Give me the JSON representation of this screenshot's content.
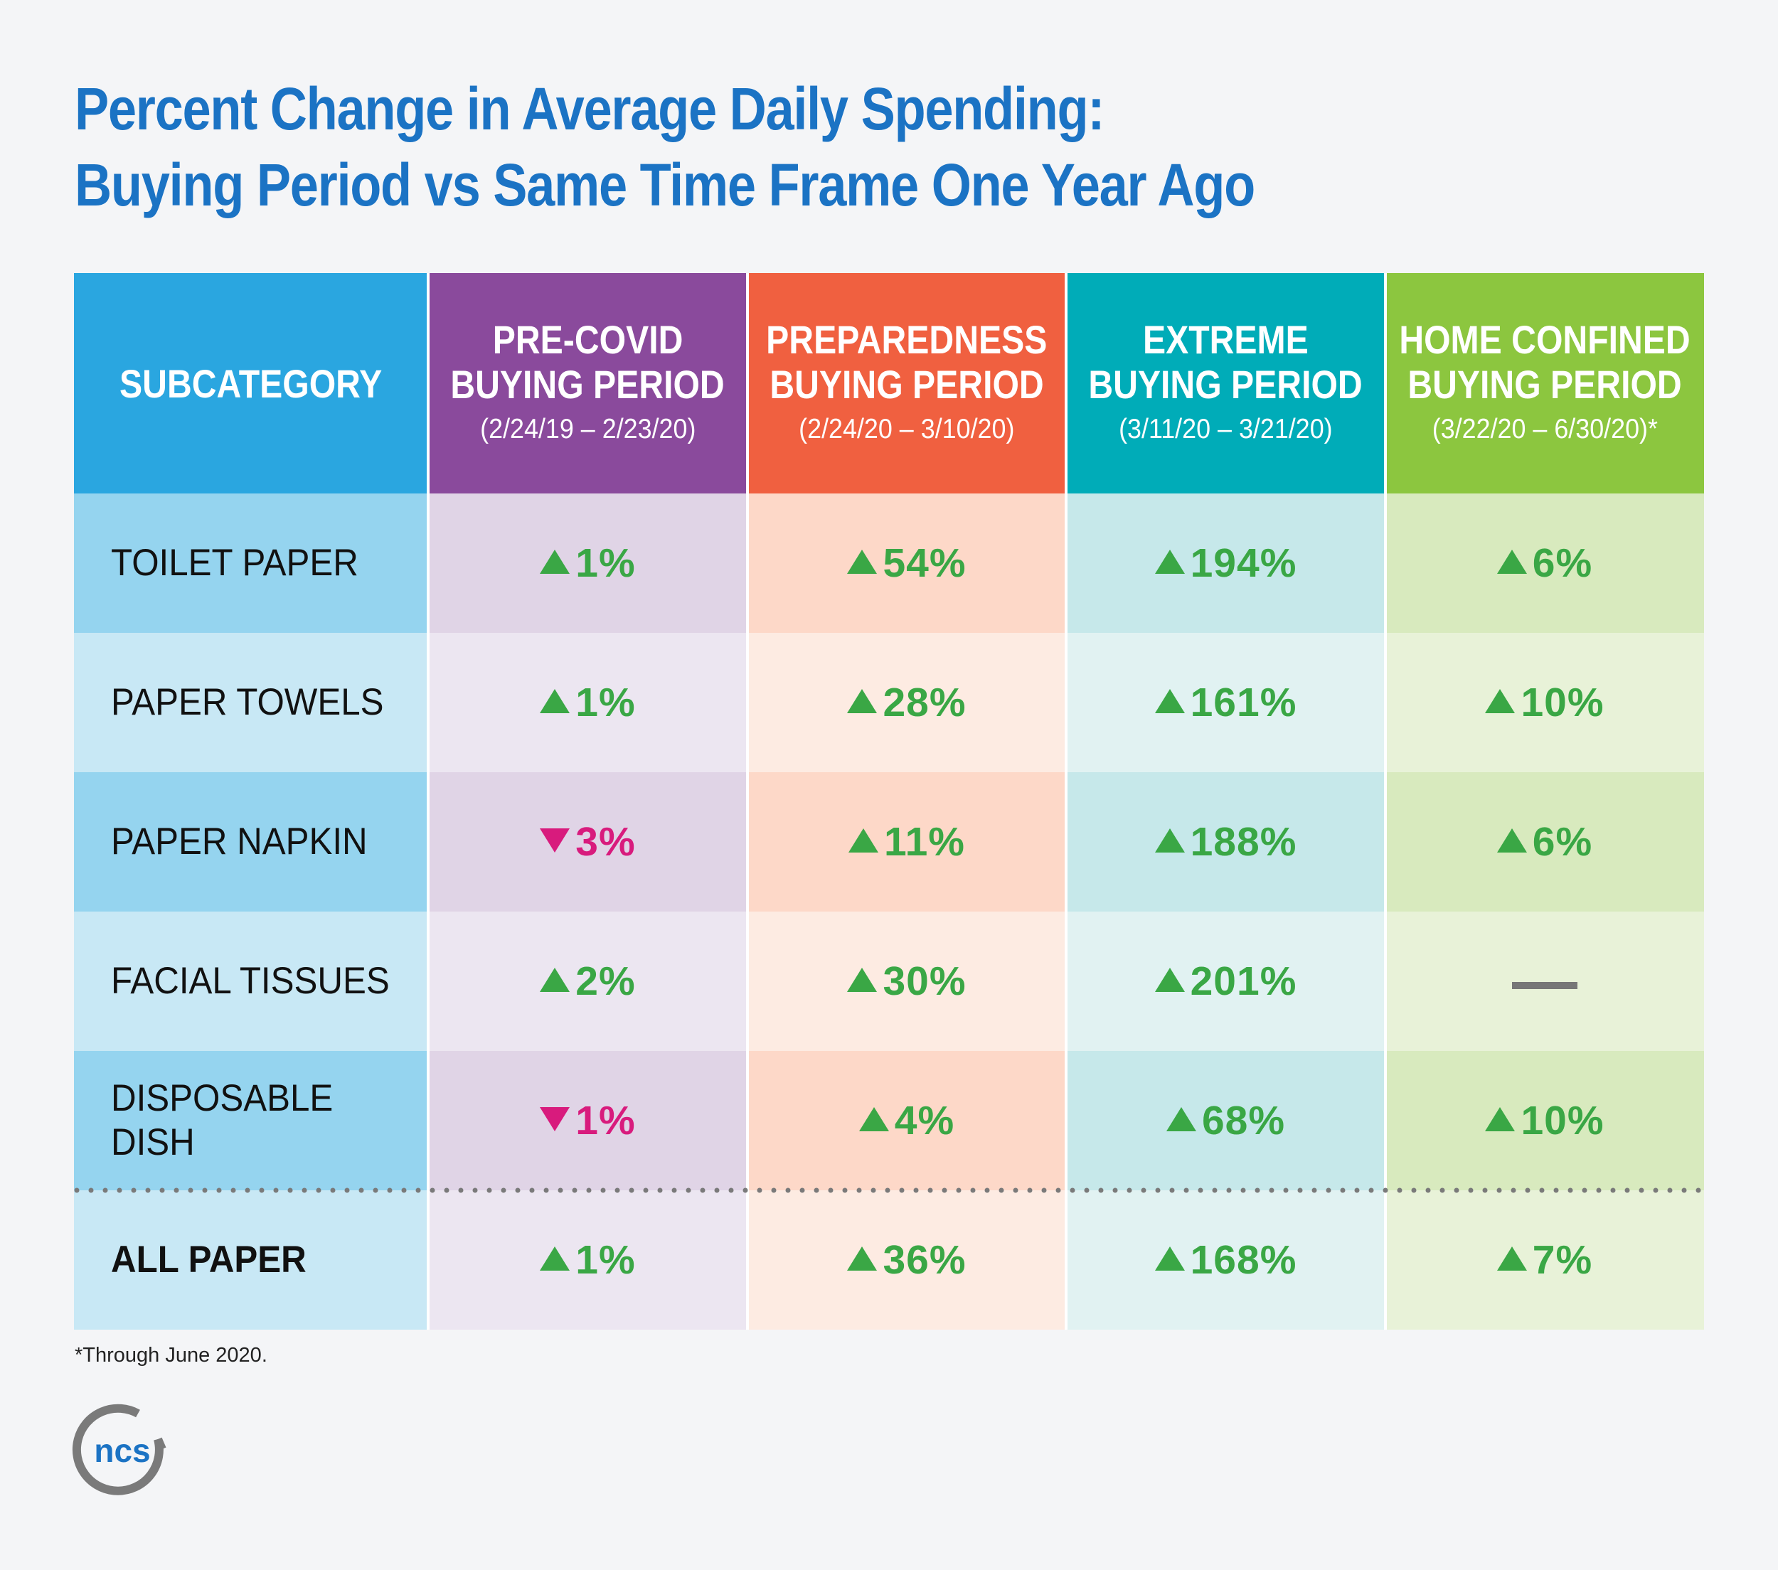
{
  "title": {
    "line1": "Percent Change in Average Daily Spending:",
    "line2": "Buying Period vs Same Time Frame One Year Ago"
  },
  "colors": {
    "title": "#1b73c4",
    "up": "#3aa745",
    "down": "#d81b7d",
    "neutral": "#777777"
  },
  "columns": [
    {
      "line1": "SUBCATEGORY",
      "line2": "",
      "dates": "",
      "header_color": "#2aa6e0",
      "dark_fill": "#95d4ef",
      "light_fill": "#c8e8f5"
    },
    {
      "line1": "PRE-COVID",
      "line2": "BUYING PERIOD",
      "dates": "(2/24/19 – 2/23/20)",
      "header_color": "#8a4a9c",
      "dark_fill": "#e0d4e6",
      "light_fill": "#ece6f1"
    },
    {
      "line1": "PREPAREDNESS",
      "line2": "BUYING PERIOD",
      "dates": "(2/24/20 – 3/10/20)",
      "header_color": "#f06040",
      "dark_fill": "#fdd8c8",
      "light_fill": "#fdebe2"
    },
    {
      "line1": "EXTREME",
      "line2": "BUYING PERIOD",
      "dates": "(3/11/20 – 3/21/20)",
      "header_color": "#00acb8",
      "dark_fill": "#c6e8ea",
      "light_fill": "#e1f2f2"
    },
    {
      "line1": "HOME CONFINED",
      "line2": "BUYING PERIOD",
      "dates": "(3/22/20 – 6/30/20)*",
      "header_color": "#8cc63f",
      "dark_fill": "#d8eabe",
      "light_fill": "#e8f2d8"
    }
  ],
  "rows": [
    {
      "label": "TOILET PAPER",
      "cells": [
        {
          "dir": "up",
          "text": "1%"
        },
        {
          "dir": "up",
          "text": "54%"
        },
        {
          "dir": "up",
          "text": "194%"
        },
        {
          "dir": "up",
          "text": "6%"
        }
      ]
    },
    {
      "label": "PAPER TOWELS",
      "cells": [
        {
          "dir": "up",
          "text": "1%"
        },
        {
          "dir": "up",
          "text": "28%"
        },
        {
          "dir": "up",
          "text": "161%"
        },
        {
          "dir": "up",
          "text": "10%"
        }
      ]
    },
    {
      "label": "PAPER NAPKIN",
      "cells": [
        {
          "dir": "down",
          "text": "3%"
        },
        {
          "dir": "up",
          "text": "11%"
        },
        {
          "dir": "up",
          "text": "188%"
        },
        {
          "dir": "up",
          "text": "6%"
        }
      ]
    },
    {
      "label": "FACIAL TISSUES",
      "cells": [
        {
          "dir": "up",
          "text": "2%"
        },
        {
          "dir": "up",
          "text": "30%"
        },
        {
          "dir": "up",
          "text": "201%"
        },
        {
          "dir": "none",
          "text": ""
        }
      ]
    },
    {
      "label": "DISPOSABLE DISH",
      "cells": [
        {
          "dir": "down",
          "text": "1%"
        },
        {
          "dir": "up",
          "text": "4%"
        },
        {
          "dir": "up",
          "text": "68%"
        },
        {
          "dir": "up",
          "text": "10%"
        }
      ]
    },
    {
      "label": "ALL PAPER",
      "cells": [
        {
          "dir": "up",
          "text": "1%"
        },
        {
          "dir": "up",
          "text": "36%"
        },
        {
          "dir": "up",
          "text": "168%"
        },
        {
          "dir": "up",
          "text": "7%"
        }
      ]
    }
  ],
  "chart_data": {
    "type": "table",
    "title": "Percent Change in Average Daily Spending: Buying Period vs Same Time Frame One Year Ago",
    "columns": [
      "SUBCATEGORY",
      "PRE-COVID BUYING PERIOD (2/24/19 – 2/23/20)",
      "PREPAREDNESS BUYING PERIOD (2/24/20 – 3/10/20)",
      "EXTREME BUYING PERIOD (3/11/20 – 3/21/20)",
      "HOME CONFINED BUYING PERIOD (3/22/20 – 6/30/20)*"
    ],
    "series": [
      {
        "name": "TOILET PAPER",
        "values": [
          1,
          54,
          194,
          6
        ]
      },
      {
        "name": "PAPER TOWELS",
        "values": [
          1,
          28,
          161,
          10
        ]
      },
      {
        "name": "PAPER NAPKIN",
        "values": [
          -3,
          11,
          188,
          6
        ]
      },
      {
        "name": "FACIAL TISSUES",
        "values": [
          2,
          30,
          201,
          null
        ]
      },
      {
        "name": "DISPOSABLE DISH",
        "values": [
          -1,
          4,
          68,
          10
        ]
      },
      {
        "name": "ALL PAPER",
        "values": [
          1,
          36,
          168,
          7
        ]
      }
    ],
    "unit": "%"
  },
  "footnote": "*Through June 2020.",
  "logo": {
    "text": "ncs",
    "ring_color": "#7a7a7a",
    "text_color": "#1b73c4"
  }
}
